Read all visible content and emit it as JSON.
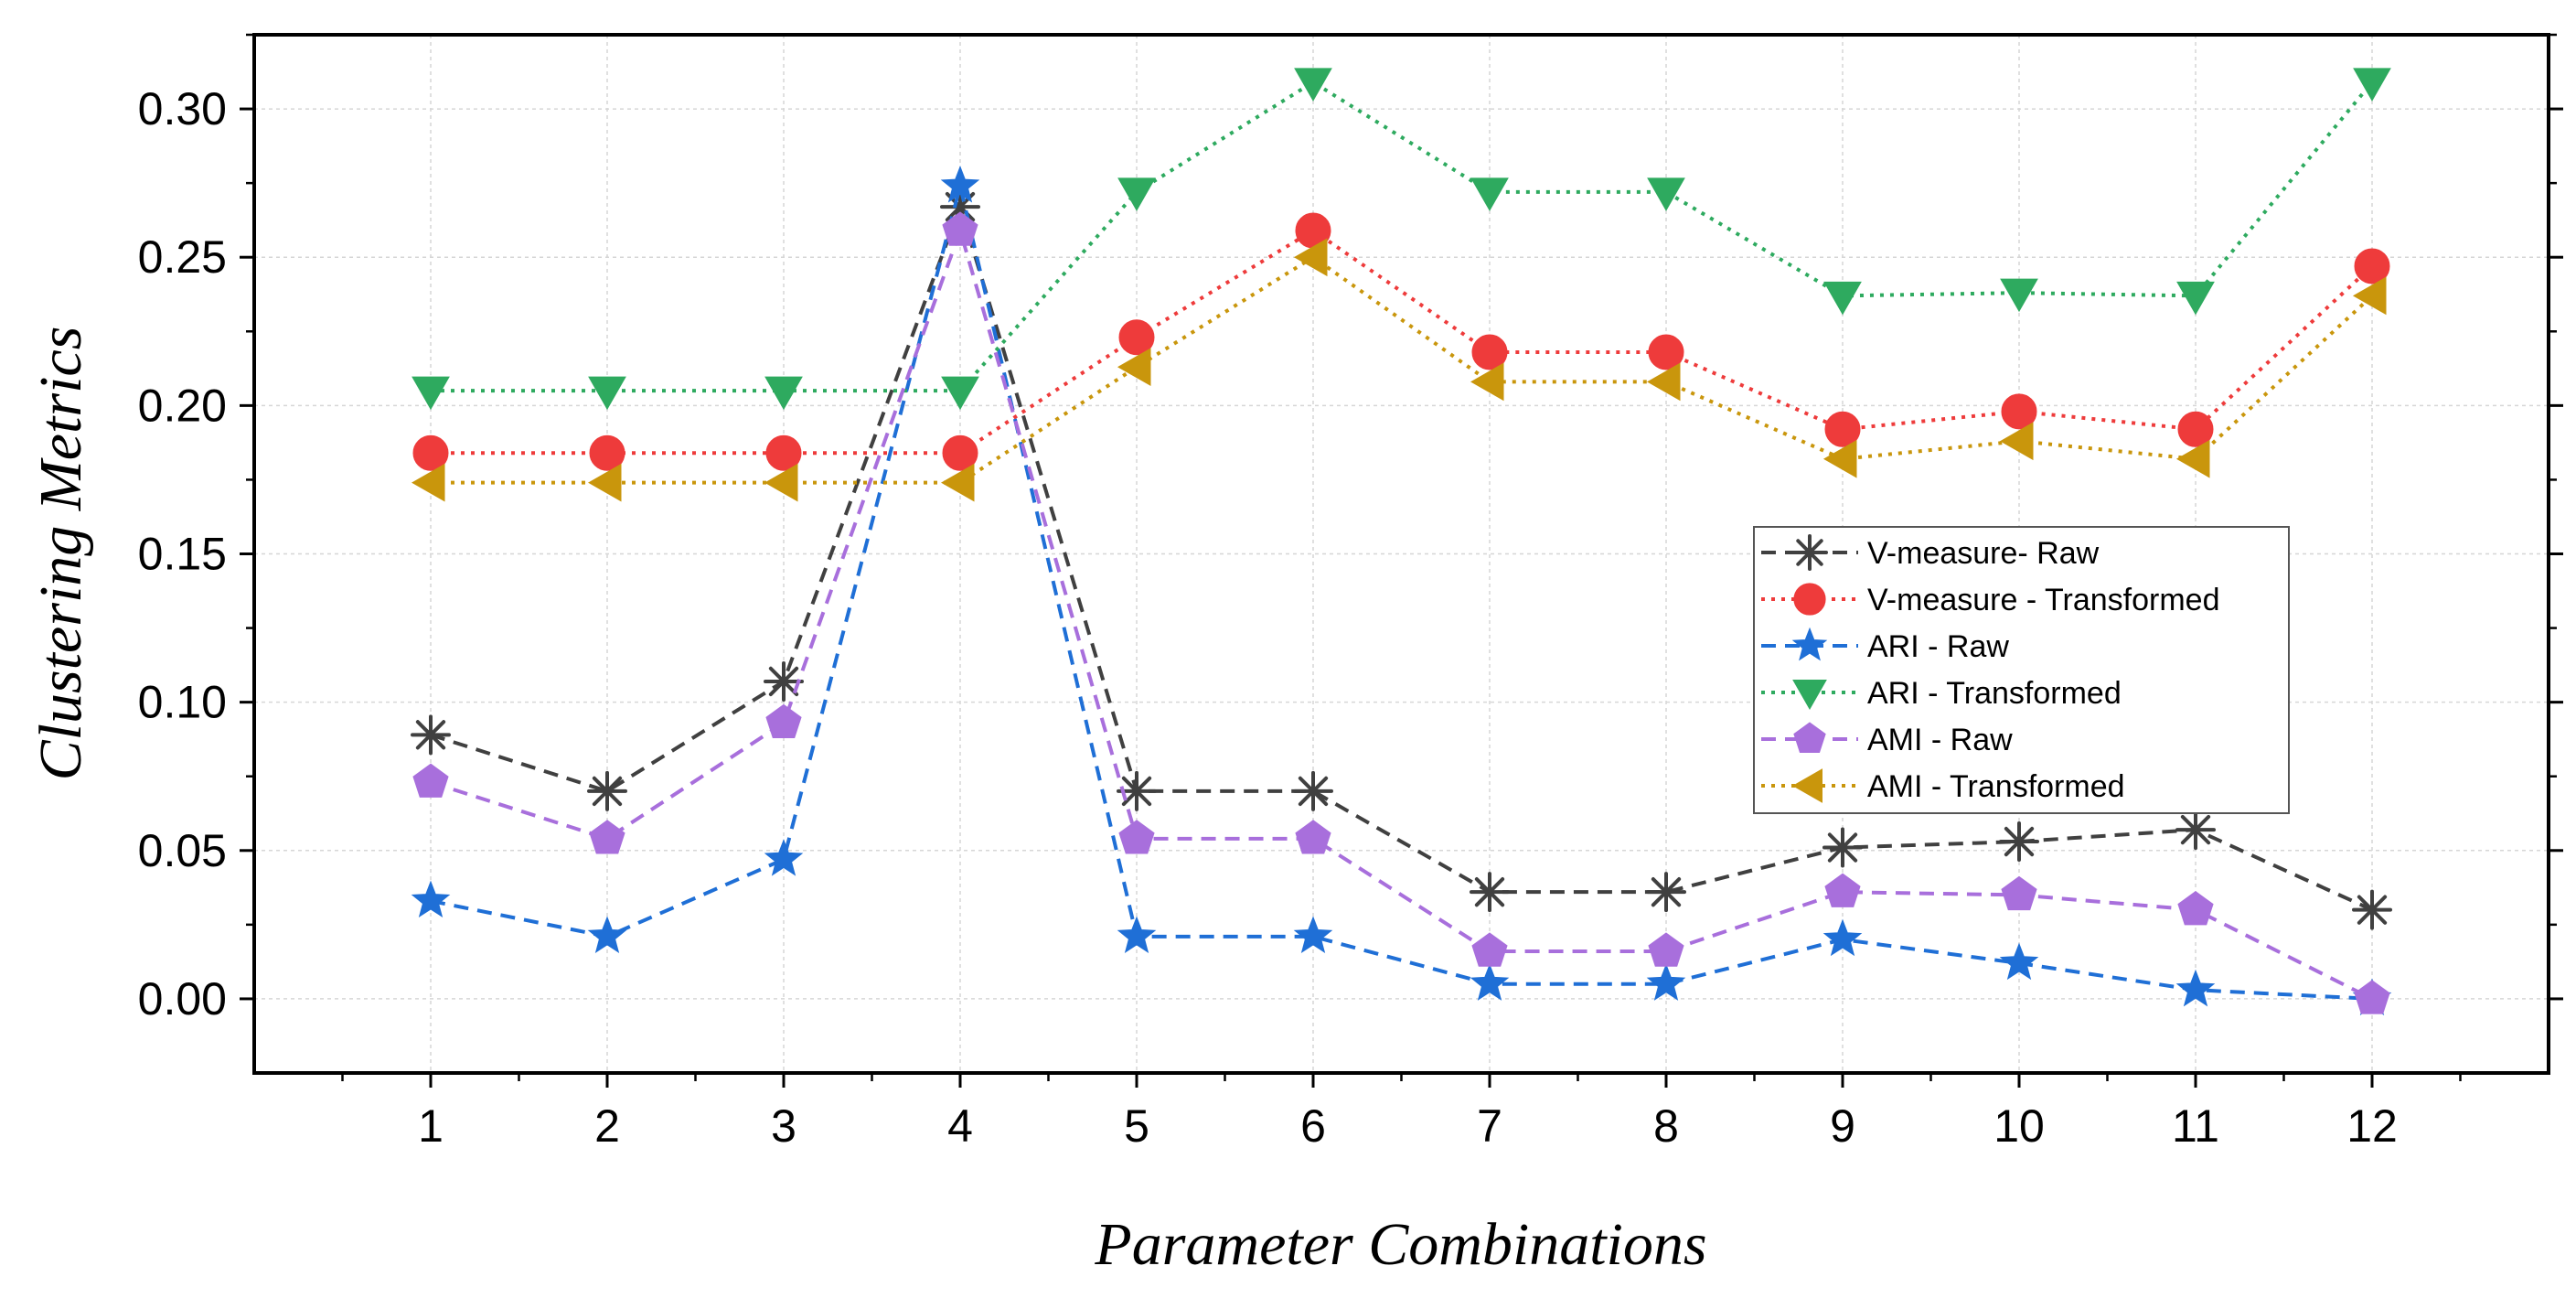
{
  "chart_data": {
    "type": "line",
    "xlabel": "Parameter Combinations",
    "ylabel": "Clustering Metrics",
    "x": [
      1,
      2,
      3,
      4,
      5,
      6,
      7,
      8,
      9,
      10,
      11,
      12
    ],
    "xlim": [
      0,
      13
    ],
    "ylim": [
      -0.025,
      0.325
    ],
    "yticks": [
      "0.00",
      "0.05",
      "0.10",
      "0.15",
      "0.20",
      "0.25",
      "0.30"
    ],
    "grid": true,
    "legend_position": "center-right",
    "series": [
      {
        "name": "V-measure- Raw",
        "color": "#404040",
        "marker": "asterisk",
        "line": "dashed",
        "values": [
          0.089,
          0.07,
          0.107,
          0.267,
          0.07,
          0.07,
          0.036,
          0.036,
          0.051,
          0.053,
          0.057,
          0.03
        ]
      },
      {
        "name": "V-measure - Transformed",
        "color": "#ee3b3b",
        "marker": "circle",
        "line": "dotted",
        "values": [
          0.184,
          0.184,
          0.184,
          0.184,
          0.223,
          0.259,
          0.218,
          0.218,
          0.192,
          0.198,
          0.192,
          0.247
        ]
      },
      {
        "name": "ARI - Raw",
        "color": "#1f6fd6",
        "marker": "star",
        "line": "dashed",
        "values": [
          0.033,
          0.021,
          0.047,
          0.274,
          0.021,
          0.021,
          0.005,
          0.005,
          0.02,
          0.012,
          0.003,
          0.0
        ]
      },
      {
        "name": "ARI - Transformed",
        "color": "#2eaa5f",
        "marker": "triangle-down",
        "line": "dotted",
        "values": [
          0.205,
          0.205,
          0.205,
          0.205,
          0.272,
          0.309,
          0.272,
          0.272,
          0.237,
          0.238,
          0.237,
          0.309
        ]
      },
      {
        "name": "AMI - Raw",
        "color": "#a86fdc",
        "marker": "pentagon",
        "line": "dashed",
        "values": [
          0.073,
          0.054,
          0.093,
          0.259,
          0.054,
          0.054,
          0.016,
          0.016,
          0.036,
          0.035,
          0.03,
          0.0
        ]
      },
      {
        "name": "AMI - Transformed",
        "color": "#c9960c",
        "marker": "triangle-left",
        "line": "dotted",
        "values": [
          0.174,
          0.174,
          0.174,
          0.174,
          0.213,
          0.25,
          0.208,
          0.208,
          0.182,
          0.188,
          0.182,
          0.237
        ]
      }
    ]
  }
}
